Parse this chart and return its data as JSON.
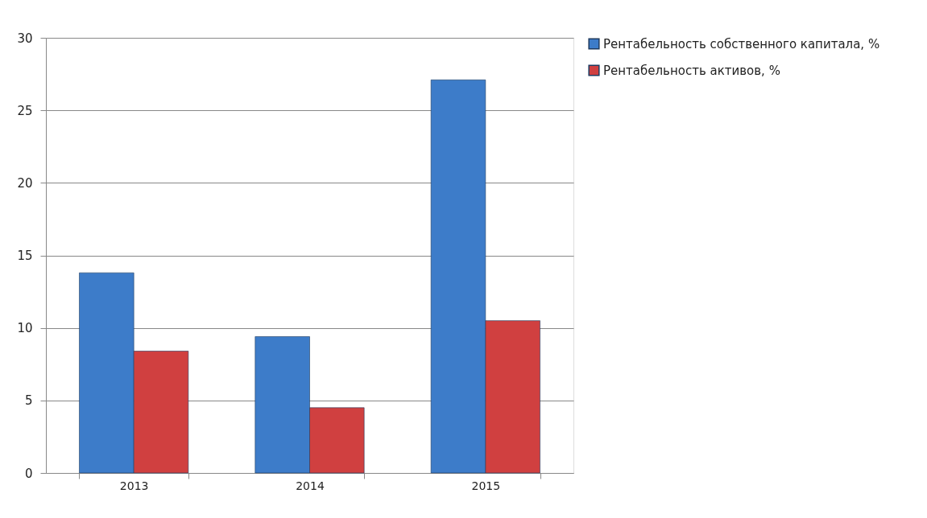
{
  "chart_data": {
    "type": "bar",
    "categories": [
      "2013",
      "2014",
      "2015"
    ],
    "series": [
      {
        "name": "Рентабельность собственного капитала, %",
        "color": "#3d7cc9",
        "values": [
          13.8,
          9.4,
          27.1
        ]
      },
      {
        "name": "Рентабельность активов, %",
        "color": "#d04040",
        "values": [
          8.4,
          4.5,
          10.5
        ]
      }
    ],
    "ylim": [
      0,
      30
    ],
    "yticks": [
      0,
      5,
      10,
      15,
      20,
      25,
      30
    ],
    "grid": "y",
    "legend": "right"
  }
}
